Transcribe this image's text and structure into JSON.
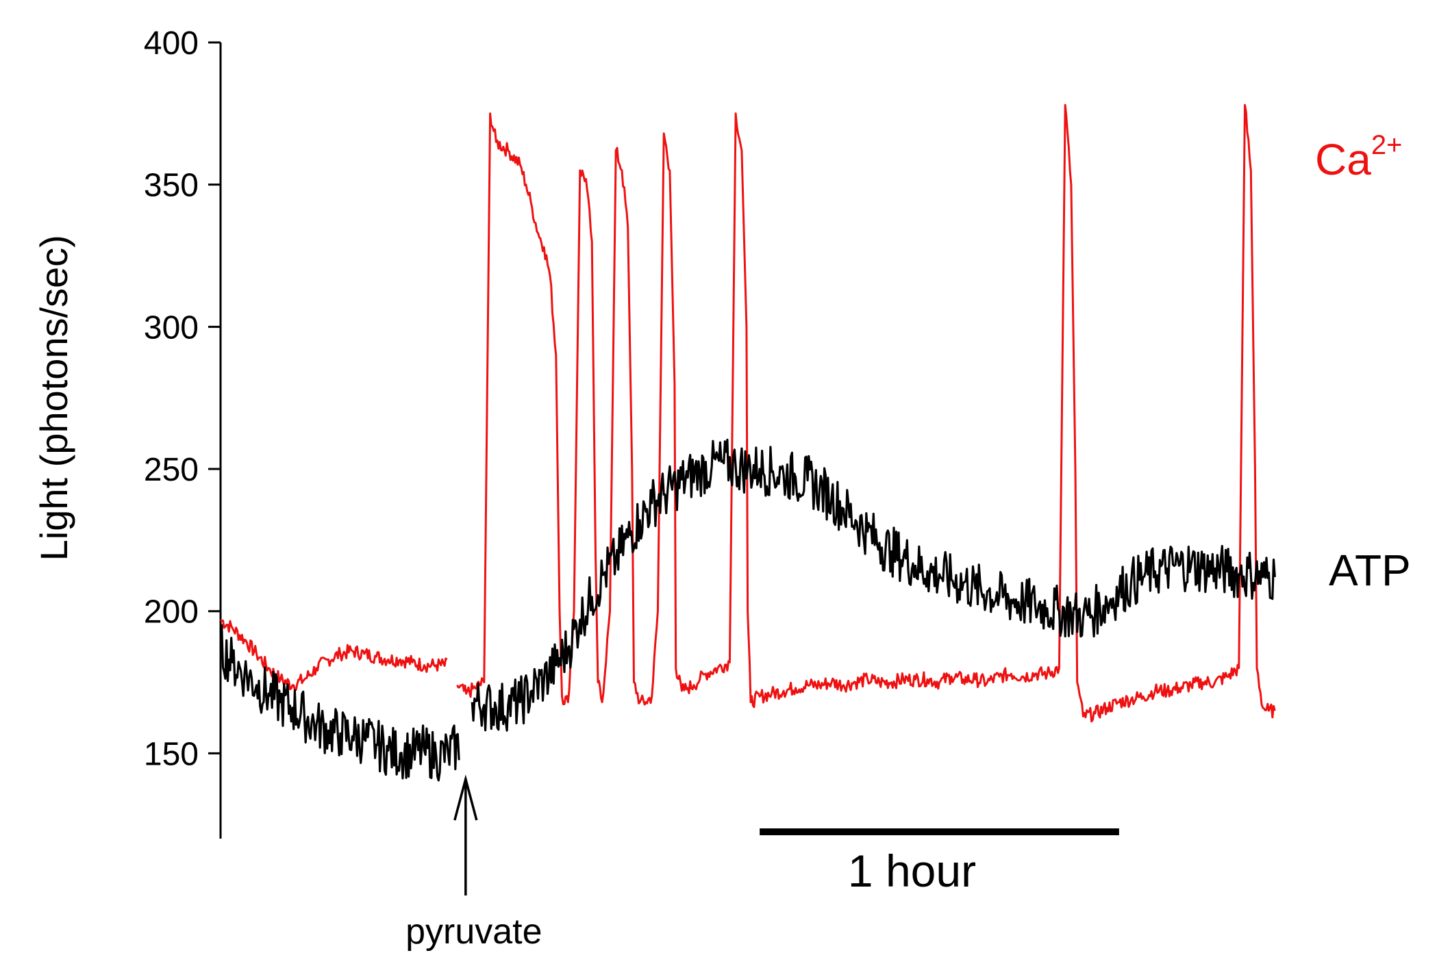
{
  "chart_data": {
    "type": "line",
    "ylabel": "Light (photons/sec)",
    "ylim": [
      120,
      400
    ],
    "yticks": [
      150,
      200,
      250,
      300,
      350,
      400
    ],
    "xlim": [
      0,
      181
    ],
    "x_unit": "minutes",
    "grid": false,
    "series": [
      {
        "name": "Ca",
        "name_superscript": "2+",
        "color": "#ee1111",
        "points": [
          [
            0,
            197
          ],
          [
            2,
            194
          ],
          [
            4,
            190
          ],
          [
            6,
            185
          ],
          [
            8,
            180
          ],
          [
            10,
            176
          ],
          [
            12,
            174
          ],
          [
            14,
            176
          ],
          [
            16,
            180
          ],
          [
            18,
            183
          ],
          [
            20,
            185
          ],
          [
            22,
            186
          ],
          [
            24,
            185
          ],
          [
            26,
            184
          ],
          [
            28,
            183
          ],
          [
            30,
            183
          ],
          [
            32,
            182
          ],
          [
            34,
            181
          ],
          [
            36,
            181
          ],
          [
            38,
            181
          ],
          [
            39.5,
            174
          ],
          [
            41,
            171
          ],
          [
            42.5,
            173
          ],
          [
            44,
            175
          ],
          [
            45,
            375
          ],
          [
            46,
            365
          ],
          [
            48,
            362
          ],
          [
            50,
            357
          ],
          [
            51,
            350
          ],
          [
            52,
            342
          ],
          [
            53,
            333
          ],
          [
            54,
            328
          ],
          [
            55,
            318
          ],
          [
            56,
            290
          ],
          [
            56.6,
            200
          ],
          [
            57,
            170
          ],
          [
            58,
            168
          ],
          [
            59,
            200
          ],
          [
            60,
            355
          ],
          [
            61,
            352
          ],
          [
            62,
            330
          ],
          [
            62.6,
            220
          ],
          [
            63,
            175
          ],
          [
            63.7,
            168
          ],
          [
            65,
            200
          ],
          [
            66,
            362
          ],
          [
            67,
            355
          ],
          [
            68,
            335
          ],
          [
            68.7,
            250
          ],
          [
            69,
            175
          ],
          [
            70,
            168
          ],
          [
            71,
            168
          ],
          [
            72,
            170
          ],
          [
            73,
            200
          ],
          [
            74,
            368
          ],
          [
            75,
            355
          ],
          [
            75.8,
            280
          ],
          [
            76,
            180
          ],
          [
            77,
            172
          ],
          [
            78,
            173
          ],
          [
            79,
            174
          ],
          [
            80,
            176
          ],
          [
            81,
            178
          ],
          [
            83,
            180
          ],
          [
            85,
            182
          ],
          [
            86,
            375
          ],
          [
            87,
            362
          ],
          [
            87.8,
            300
          ],
          [
            88,
            200
          ],
          [
            88.5,
            168
          ],
          [
            90,
            170
          ],
          [
            92,
            171
          ],
          [
            94,
            172
          ],
          [
            96,
            173
          ],
          [
            98,
            174
          ],
          [
            100,
            174
          ],
          [
            102,
            175
          ],
          [
            104,
            174
          ],
          [
            106,
            175
          ],
          [
            108,
            176
          ],
          [
            110,
            175
          ],
          [
            112,
            175
          ],
          [
            114,
            176
          ],
          [
            116,
            176
          ],
          [
            118,
            176
          ],
          [
            120,
            175
          ],
          [
            122,
            177
          ],
          [
            124,
            176
          ],
          [
            126,
            176
          ],
          [
            128,
            175
          ],
          [
            130,
            177
          ],
          [
            132,
            178
          ],
          [
            134,
            177
          ],
          [
            136,
            178
          ],
          [
            138,
            178
          ],
          [
            140,
            180
          ],
          [
            141,
            378
          ],
          [
            142,
            350
          ],
          [
            142.7,
            250
          ],
          [
            143,
            175
          ],
          [
            144,
            163
          ],
          [
            146,
            164
          ],
          [
            148,
            166
          ],
          [
            150,
            168
          ],
          [
            152,
            169
          ],
          [
            154,
            170
          ],
          [
            156,
            172
          ],
          [
            158,
            172
          ],
          [
            160,
            173
          ],
          [
            162,
            174
          ],
          [
            164,
            175
          ],
          [
            166,
            175
          ],
          [
            168,
            177
          ],
          [
            170,
            180
          ],
          [
            171,
            378
          ],
          [
            172,
            355
          ],
          [
            172.7,
            250
          ],
          [
            173,
            180
          ],
          [
            174,
            166
          ],
          [
            175,
            165
          ],
          [
            176,
            165
          ]
        ]
      },
      {
        "name": "ATP",
        "color": "#000000",
        "points": [
          [
            0,
            187
          ],
          [
            2,
            182
          ],
          [
            4,
            178
          ],
          [
            6,
            174
          ],
          [
            8,
            171
          ],
          [
            10,
            168
          ],
          [
            12,
            166
          ],
          [
            14,
            163
          ],
          [
            16,
            160
          ],
          [
            18,
            158
          ],
          [
            20,
            157
          ],
          [
            22,
            156
          ],
          [
            24,
            155
          ],
          [
            26,
            153
          ],
          [
            28,
            151
          ],
          [
            30,
            150
          ],
          [
            32,
            150
          ],
          [
            34,
            151
          ],
          [
            36,
            149
          ],
          [
            38,
            150
          ],
          [
            40,
            153
          ],
          [
            42,
            168
          ],
          [
            44,
            167
          ],
          [
            46,
            166
          ],
          [
            48,
            167
          ],
          [
            50,
            168
          ],
          [
            52,
            172
          ],
          [
            54,
            176
          ],
          [
            56,
            181
          ],
          [
            58,
            187
          ],
          [
            60,
            197
          ],
          [
            62,
            205
          ],
          [
            64,
            213
          ],
          [
            66,
            218
          ],
          [
            68,
            226
          ],
          [
            70,
            232
          ],
          [
            72,
            238
          ],
          [
            74,
            241
          ],
          [
            76,
            244
          ],
          [
            78,
            247
          ],
          [
            80,
            249
          ],
          [
            82,
            251
          ],
          [
            84,
            252
          ],
          [
            86,
            251
          ],
          [
            88,
            250
          ],
          [
            90,
            250
          ],
          [
            92,
            249
          ],
          [
            94,
            248
          ],
          [
            96,
            247
          ],
          [
            98,
            246
          ],
          [
            100,
            243
          ],
          [
            102,
            240
          ],
          [
            104,
            236
          ],
          [
            106,
            232
          ],
          [
            108,
            228
          ],
          [
            110,
            224
          ],
          [
            112,
            221
          ],
          [
            114,
            219
          ],
          [
            116,
            216
          ],
          [
            118,
            214
          ],
          [
            120,
            213
          ],
          [
            122,
            211
          ],
          [
            124,
            210
          ],
          [
            126,
            208
          ],
          [
            128,
            207
          ],
          [
            130,
            205
          ],
          [
            132,
            204
          ],
          [
            134,
            203
          ],
          [
            136,
            202
          ],
          [
            138,
            201
          ],
          [
            140,
            200
          ],
          [
            142,
            199
          ],
          [
            144,
            198
          ],
          [
            146,
            200
          ],
          [
            148,
            203
          ],
          [
            150,
            207
          ],
          [
            152,
            210
          ],
          [
            154,
            212
          ],
          [
            156,
            214
          ],
          [
            158,
            215
          ],
          [
            160,
            216
          ],
          [
            162,
            216
          ],
          [
            164,
            215
          ],
          [
            166,
            215
          ],
          [
            168,
            214
          ],
          [
            170,
            213
          ],
          [
            172,
            213
          ],
          [
            174,
            212
          ],
          [
            176,
            212
          ]
        ]
      }
    ],
    "annotations": {
      "arrow_label": "pyruvate",
      "arrow_x": 40,
      "scale_bar_label": "1 hour",
      "scale_bar_x": [
        90,
        150
      ]
    }
  }
}
